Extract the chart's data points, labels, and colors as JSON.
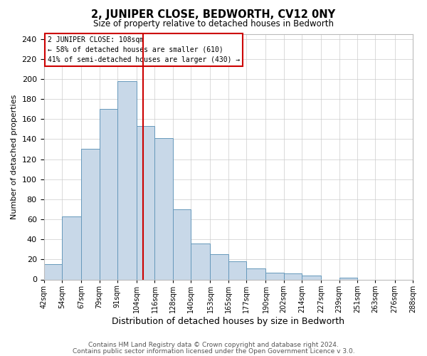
{
  "title": "2, JUNIPER CLOSE, BEDWORTH, CV12 0NY",
  "subtitle": "Size of property relative to detached houses in Bedworth",
  "xlabel": "Distribution of detached houses by size in Bedworth",
  "ylabel": "Number of detached properties",
  "footer_line1": "Contains HM Land Registry data © Crown copyright and database right 2024.",
  "footer_line2": "Contains public sector information licensed under the Open Government Licence v 3.0.",
  "bin_edges": [
    42,
    54,
    67,
    79,
    91,
    104,
    116,
    128,
    140,
    153,
    165,
    177,
    190,
    202,
    214,
    227,
    239,
    251,
    263,
    276,
    288
  ],
  "bin_labels": [
    "42sqm",
    "54sqm",
    "67sqm",
    "79sqm",
    "91sqm",
    "104sqm",
    "116sqm",
    "128sqm",
    "140sqm",
    "153sqm",
    "165sqm",
    "177sqm",
    "190sqm",
    "202sqm",
    "214sqm",
    "227sqm",
    "239sqm",
    "251sqm",
    "263sqm",
    "276sqm",
    "288sqm"
  ],
  "counts": [
    15,
    63,
    130,
    170,
    198,
    153,
    141,
    70,
    36,
    25,
    18,
    11,
    7,
    6,
    4,
    0,
    2,
    0,
    0,
    0
  ],
  "bar_color": "#c8d8e8",
  "bar_edge_color": "#6699bb",
  "vline_x": 108,
  "vline_color": "#cc0000",
  "annotation_line1": "2 JUNIPER CLOSE: 108sqm",
  "annotation_line2": "← 58% of detached houses are smaller (610)",
  "annotation_line3": "41% of semi-detached houses are larger (430) →",
  "annotation_box_edge_color": "#cc0000",
  "ylim": [
    0,
    245
  ],
  "yticks": [
    0,
    20,
    40,
    60,
    80,
    100,
    120,
    140,
    160,
    180,
    200,
    220,
    240
  ],
  "background_color": "#ffffff",
  "grid_color": "#cccccc"
}
